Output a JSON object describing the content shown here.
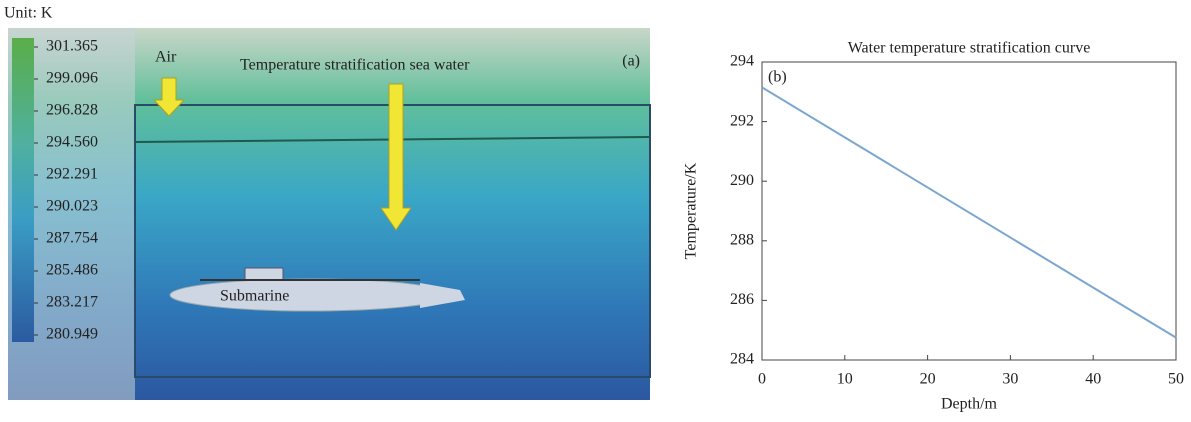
{
  "panel_a": {
    "unit_label": "Unit: K",
    "panel_label": "(a)",
    "air_label": "Air",
    "water_label": "Temperature stratification sea water",
    "submarine_label": "Submarine",
    "colorbar": {
      "lim": [
        280.949,
        301.365
      ],
      "ticks": [
        301.365,
        299.096,
        296.828,
        {
          "value": 294.56,
          "label": "294.560"
        },
        292.291,
        290.023,
        287.754,
        285.486,
        283.217,
        280.949
      ]
    }
  },
  "chart_data": {
    "type": "line",
    "title": "Water temperature stratification curve",
    "annotation": "(b)",
    "x_label": "Depth/m",
    "y_label": "Temperature/K",
    "x": [
      0,
      50
    ],
    "values": [
      293.15,
      284.75
    ],
    "color": "#7aa6d0",
    "xlim": [
      0,
      50
    ],
    "ylim": [
      284,
      294
    ],
    "xticks": [
      0,
      10,
      20,
      30,
      40,
      50
    ],
    "yticks": [
      284,
      286,
      288,
      290,
      292,
      294
    ],
    "grid": false
  }
}
